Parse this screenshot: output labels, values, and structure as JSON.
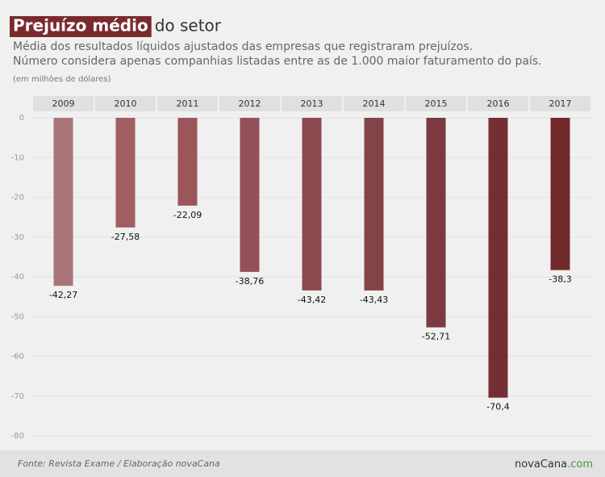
{
  "chart_data": {
    "type": "bar",
    "title": "Prejuízo médio",
    "title_rest": "do setor",
    "subtitle": [
      "Média dos resultados líquidos ajustados das empresas que registraram prejuízos.",
      "Número considera apenas companhias listadas entre as de 1.000 maior faturamento do país."
    ],
    "unit_note": "(em milhões de dólares)",
    "categories": [
      "2009",
      "2010",
      "2011",
      "2012",
      "2013",
      "2014",
      "2015",
      "2016",
      "2017"
    ],
    "values": [
      -42.27,
      -27.58,
      -22.09,
      -38.76,
      -43.42,
      -43.43,
      -52.71,
      -70.4,
      -38.3
    ],
    "value_labels": [
      "-42,27",
      "-27,58",
      "-22,09",
      "-38,76",
      "-43,42",
      "-43,43",
      "-52,71",
      "-70,4",
      "-38,3"
    ],
    "colors": [
      "#a87478",
      "#a05e62",
      "#9a5659",
      "#94505a",
      "#8a4a4e",
      "#844347",
      "#7a3a40",
      "#742f35",
      "#72292c"
    ],
    "ylim": [
      -80,
      0
    ],
    "yticks": [
      0,
      -10,
      -20,
      -30,
      -40,
      -50,
      -60,
      -70,
      -80
    ],
    "grid": true,
    "source": "Fonte: Revista Exame / Elaboração novaCana",
    "logo": [
      "novaCana",
      ".com"
    ]
  }
}
